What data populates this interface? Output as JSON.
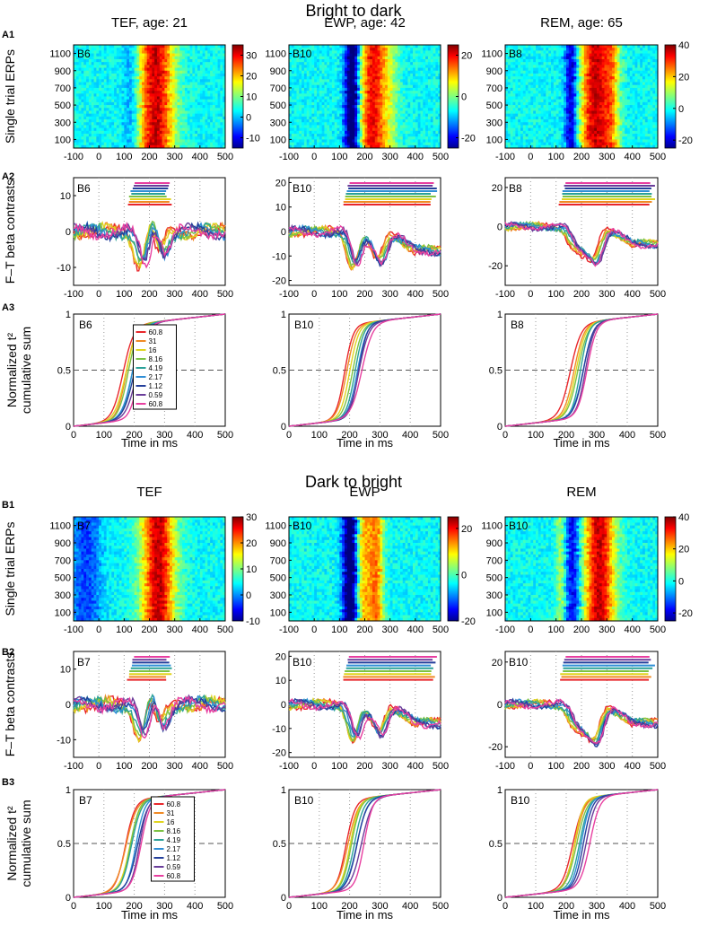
{
  "sections": [
    {
      "id": "A",
      "title": "Bright to dark",
      "row_labels": [
        "A1",
        "A2",
        "A3"
      ],
      "columns": [
        {
          "header": "TEF, age: 21",
          "badge": "B6",
          "heat_clim": [
            -15,
            35
          ],
          "cb_ticks": [
            -10,
            0,
            10,
            20,
            30
          ],
          "beta_ylim": [
            -15,
            15
          ],
          "beta_yticks": [
            -10,
            0,
            10
          ],
          "legend": true
        },
        {
          "header": "EWP, age: 42",
          "badge": "B10",
          "heat_clim": [
            -25,
            25
          ],
          "cb_ticks": [
            -20,
            0,
            20
          ],
          "beta_ylim": [
            -22,
            22
          ],
          "beta_yticks": [
            -20,
            -10,
            0,
            10,
            20
          ],
          "legend": false
        },
        {
          "header": "REM, age: 65",
          "badge": "B8",
          "heat_clim": [
            -25,
            40
          ],
          "cb_ticks": [
            -20,
            0,
            20,
            40
          ],
          "beta_ylim": [
            -30,
            25
          ],
          "beta_yticks": [
            -20,
            0,
            20
          ],
          "legend": false
        }
      ]
    },
    {
      "id": "B",
      "title": "Dark to bright",
      "row_labels": [
        "B1",
        "B2",
        "B3"
      ],
      "columns": [
        {
          "header": "TEF",
          "badge": "B7",
          "heat_clim": [
            -10,
            30
          ],
          "cb_ticks": [
            -10,
            0,
            10,
            20,
            30
          ],
          "beta_ylim": [
            -15,
            15
          ],
          "beta_yticks": [
            -10,
            0,
            10
          ],
          "legend": true
        },
        {
          "header": "EWP",
          "badge": "B10",
          "heat_clim": [
            -20,
            25
          ],
          "cb_ticks": [
            -20,
            0,
            20
          ],
          "beta_ylim": [
            -22,
            22
          ],
          "beta_yticks": [
            -20,
            -10,
            0,
            10,
            20
          ],
          "legend": false
        },
        {
          "header": "REM",
          "badge": "B10",
          "heat_clim": [
            -25,
            40
          ],
          "cb_ticks": [
            -20,
            0,
            20,
            40
          ],
          "beta_ylim": [
            -25,
            25
          ],
          "beta_yticks": [
            -20,
            0,
            20
          ],
          "legend": false
        }
      ]
    }
  ],
  "y_labels": {
    "heat": "Single trial ERPs",
    "beta": "F–T beta contrasts",
    "cum": "Normalized t² cumulative sum"
  },
  "x_label": "Time in ms",
  "legend_entries": [
    "60.8",
    "31",
    "16",
    "8.16",
    "4.19",
    "2.17",
    "1.12",
    "0.59",
    "60.8"
  ],
  "series_colors": [
    "#e8262b",
    "#f08a24",
    "#e0d41f",
    "#7cc242",
    "#2aa198",
    "#2f8fd6",
    "#243f9b",
    "#6a3d9a",
    "#e83fa0"
  ],
  "chart_data": [
    {
      "type": "heatmap",
      "title": "Single trial ERPs",
      "xlabel": "",
      "xlim": [
        -100,
        500
      ],
      "x_ticks": [
        -100,
        0,
        100,
        200,
        300,
        400,
        500
      ],
      "ylim": [
        0,
        1200
      ],
      "y_ticks": [
        100,
        300,
        500,
        700,
        900,
        1100
      ]
    },
    {
      "type": "line",
      "title": "F–T beta contrasts",
      "xlabel": "",
      "xlim": [
        -100,
        500
      ],
      "x_ticks": [
        -100,
        0,
        100,
        200,
        300,
        400,
        500
      ]
    },
    {
      "type": "line",
      "title": "Normalized t² cumulative sum",
      "xlabel": "Time in ms",
      "ylabel": "Normalized t² cumulative sum",
      "xlim": [
        0,
        500
      ],
      "ylim": [
        0,
        1
      ],
      "x_ticks": [
        0,
        100,
        200,
        300,
        400,
        500
      ],
      "y_ticks": [
        0,
        0.5,
        1
      ]
    }
  ]
}
